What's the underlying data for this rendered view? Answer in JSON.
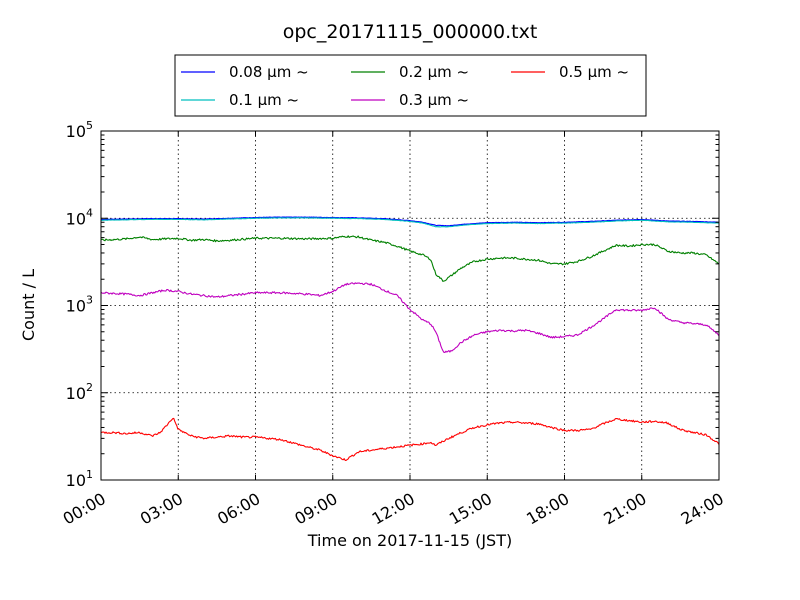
{
  "chart_data": {
    "type": "line",
    "title": "opc_20171115_000000.txt",
    "xlabel": "Time on 2017-11-15 (JST)",
    "ylabel": "Count / L",
    "yscale": "log",
    "xlim": [
      0,
      24
    ],
    "ylim_exponent": [
      1,
      5
    ],
    "x_ticks": [
      {
        "value": 0,
        "label": "00:00"
      },
      {
        "value": 3,
        "label": "03:00"
      },
      {
        "value": 6,
        "label": "06:00"
      },
      {
        "value": 9,
        "label": "09:00"
      },
      {
        "value": 12,
        "label": "12:00"
      },
      {
        "value": 15,
        "label": "15:00"
      },
      {
        "value": 18,
        "label": "18:00"
      },
      {
        "value": 21,
        "label": "21:00"
      },
      {
        "value": 24,
        "label": "24:00"
      }
    ],
    "y_ticks": [
      {
        "exp": 1,
        "base": "10",
        "sup": "1"
      },
      {
        "exp": 2,
        "base": "10",
        "sup": "2"
      },
      {
        "exp": 3,
        "base": "10",
        "sup": "3"
      },
      {
        "exp": 4,
        "base": "10",
        "sup": "4"
      },
      {
        "exp": 5,
        "base": "10",
        "sup": "5"
      }
    ],
    "grid": true,
    "legend_position": "top-center",
    "series": [
      {
        "name": "0.08 μm ~",
        "color": "#0000ff",
        "x": [
          0,
          1,
          2,
          3,
          4,
          5,
          6,
          7,
          8,
          9,
          10,
          11,
          12,
          12.5,
          13,
          13.5,
          14,
          14.5,
          15,
          16,
          17,
          18,
          19,
          20,
          21,
          22,
          23,
          24
        ],
        "values": [
          9700,
          9800,
          9900,
          9900,
          9800,
          10000,
          10200,
          10300,
          10300,
          10200,
          10100,
          9900,
          9400,
          9000,
          8300,
          8200,
          8500,
          8700,
          8900,
          9000,
          8900,
          9000,
          9200,
          9500,
          9700,
          9300,
          9200,
          9000
        ]
      },
      {
        "name": "0.1 μm ~",
        "color": "#00bfbf",
        "x": [
          0,
          1,
          2,
          3,
          4,
          5,
          6,
          7,
          8,
          9,
          10,
          11,
          12,
          12.5,
          13,
          13.5,
          14,
          14.5,
          15,
          16,
          17,
          18,
          19,
          20,
          21,
          22,
          23,
          24
        ],
        "values": [
          9500,
          9600,
          9700,
          9700,
          9600,
          9800,
          10000,
          10100,
          10100,
          10000,
          9900,
          9700,
          9200,
          8800,
          8000,
          8000,
          8300,
          8500,
          8700,
          8800,
          8700,
          8800,
          9000,
          9300,
          9500,
          9100,
          9000,
          8800
        ]
      },
      {
        "name": "0.2 μm ~",
        "color": "#008000",
        "x": [
          0,
          1,
          1.5,
          2,
          2.5,
          3,
          3.5,
          4,
          4.5,
          5,
          6,
          7,
          8,
          9,
          9.5,
          10,
          10.5,
          11,
          11.5,
          12,
          12.5,
          12.8,
          13,
          13.3,
          13.6,
          14,
          14.5,
          15,
          15.5,
          16,
          16.5,
          17,
          17.5,
          18,
          18.5,
          19,
          19.5,
          20,
          20.5,
          21,
          21.5,
          22,
          22.5,
          23,
          23.5,
          24
        ],
        "values": [
          5600,
          5800,
          6100,
          5700,
          5800,
          5900,
          5600,
          5700,
          5500,
          5600,
          5900,
          5900,
          5800,
          5900,
          6200,
          6100,
          5600,
          5300,
          4800,
          4200,
          3800,
          3400,
          2300,
          1900,
          2200,
          2700,
          3200,
          3400,
          3500,
          3500,
          3400,
          3300,
          3000,
          3000,
          3200,
          3600,
          4200,
          4900,
          4800,
          5000,
          5000,
          4200,
          4000,
          4000,
          3800,
          3000
        ]
      },
      {
        "name": "0.3 μm ~",
        "color": "#bf00bf",
        "x": [
          0,
          1,
          1.5,
          2,
          2.5,
          3,
          3.5,
          4,
          4.5,
          5,
          6,
          7,
          8,
          8.5,
          9,
          9.5,
          10,
          10.5,
          11,
          11.5,
          12,
          12.5,
          12.8,
          13,
          13.3,
          13.6,
          14,
          14.5,
          15,
          15.5,
          16,
          16.5,
          17,
          17.5,
          18,
          18.5,
          19,
          19.5,
          20,
          20.5,
          21,
          21.5,
          22,
          22.5,
          23,
          23.5,
          24
        ],
        "values": [
          1400,
          1350,
          1300,
          1400,
          1500,
          1450,
          1350,
          1300,
          1250,
          1300,
          1400,
          1400,
          1350,
          1300,
          1450,
          1750,
          1800,
          1750,
          1500,
          1300,
          900,
          680,
          620,
          500,
          290,
          300,
          380,
          460,
          500,
          520,
          510,
          520,
          480,
          430,
          440,
          460,
          560,
          700,
          900,
          880,
          880,
          950,
          700,
          640,
          620,
          600,
          460
        ]
      },
      {
        "name": "0.5 μm ~",
        "color": "#ff0000",
        "x": [
          0,
          0.5,
          1,
          1.5,
          2,
          2.3,
          2.6,
          2.8,
          3,
          3.5,
          4,
          4.5,
          5,
          5.5,
          6,
          7,
          8,
          8.5,
          9,
          9.5,
          10,
          10.5,
          11,
          11.5,
          12,
          12.5,
          12.8,
          13,
          13.5,
          14,
          14.5,
          15,
          15.5,
          16,
          16.5,
          17,
          17.5,
          18,
          18.5,
          19,
          19.5,
          20,
          20.5,
          21,
          21.5,
          22,
          22.5,
          23,
          23.5,
          24
        ],
        "values": [
          35,
          35,
          34,
          35,
          32,
          35,
          44,
          52,
          38,
          32,
          30,
          31,
          32,
          31,
          31,
          29,
          24,
          22,
          19,
          17,
          21,
          22,
          23,
          24,
          25,
          26,
          27,
          25,
          30,
          35,
          40,
          43,
          45,
          46,
          45,
          44,
          40,
          37,
          37,
          38,
          44,
          50,
          48,
          46,
          47,
          45,
          38,
          35,
          33,
          26
        ]
      }
    ]
  }
}
